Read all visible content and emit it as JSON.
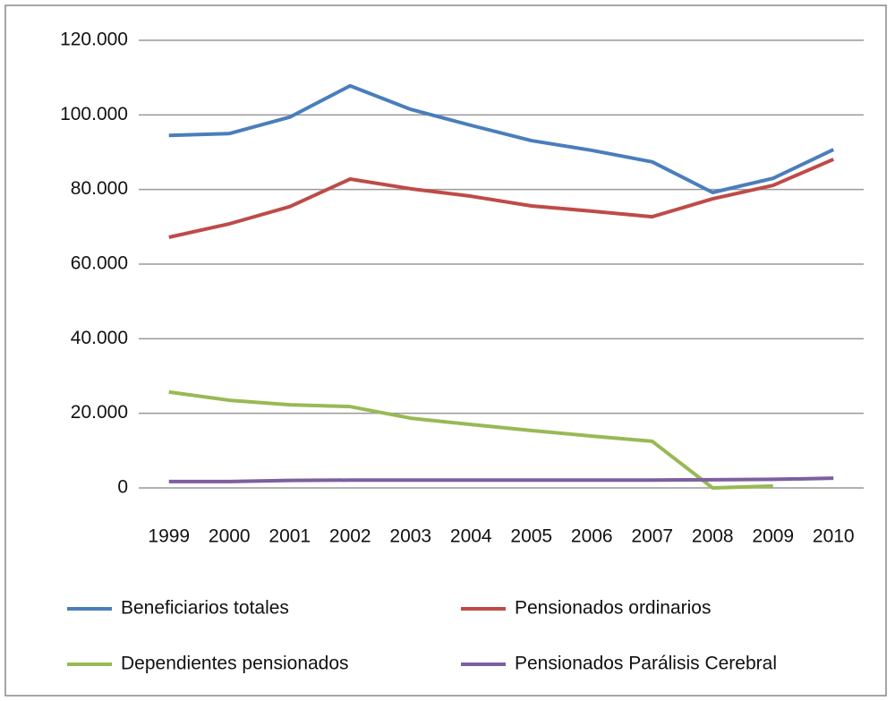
{
  "chart_data": {
    "type": "line",
    "x": [
      "1999",
      "2000",
      "2001",
      "2002",
      "2003",
      "2004",
      "2005",
      "2006",
      "2007",
      "2008",
      "2009",
      "2010"
    ],
    "series": [
      {
        "name": "Beneficiarios totales",
        "color": "#4a7ebb",
        "values": [
          94500,
          95000,
          99400,
          107800,
          101500,
          97200,
          93100,
          90500,
          87400,
          79200,
          83000,
          90700
        ]
      },
      {
        "name": "Pensionados ordinarios",
        "color": "#be4b48",
        "values": [
          67200,
          70800,
          75400,
          82800,
          80200,
          78200,
          75600,
          74200,
          72700,
          77500,
          81100,
          88100
        ]
      },
      {
        "name": "Dependientes pensionados",
        "color": "#98b954",
        "values": [
          25700,
          23500,
          22300,
          21800,
          18700,
          17000,
          15400,
          13900,
          12500,
          0,
          500,
          null
        ]
      },
      {
        "name": "Pensionados Parálisis Cerebral",
        "color": "#7d5fa0",
        "values": [
          1700,
          1700,
          2000,
          2100,
          2100,
          2100,
          2100,
          2100,
          2100,
          2200,
          2300,
          2600
        ]
      }
    ],
    "ylim": [
      0,
      120000
    ],
    "yticks": [
      0,
      {
        "value": 20000,
        "label": "20.000"
      },
      {
        "value": 40000,
        "label": "40.000"
      },
      {
        "value": 60000,
        "label": "60.000"
      },
      {
        "value": 80000,
        "label": "80.000"
      },
      {
        "value": 100000,
        "label": "100.000"
      },
      {
        "value": 120000,
        "label": "120.000"
      }
    ],
    "grid": true
  }
}
